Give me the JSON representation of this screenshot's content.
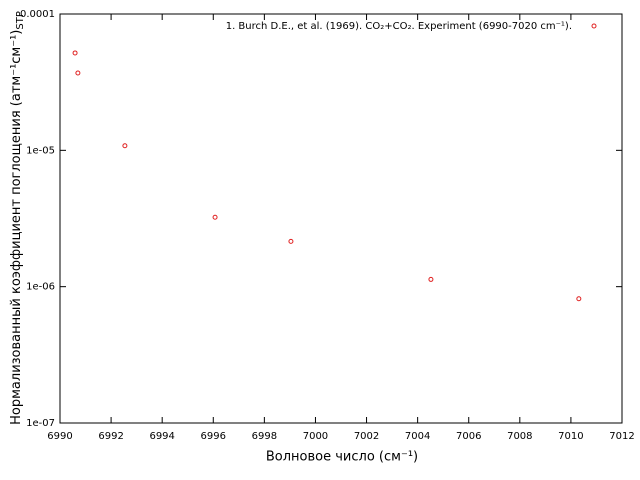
{
  "chart_data": {
    "type": "scatter",
    "xlabel": "Волновое число (см⁻¹)",
    "ylabel": "Нормализованный коэффициент поглощения (атм⁻¹см⁻¹)",
    "ylabel_subscript": "STP",
    "xlim": [
      6990,
      7012
    ],
    "xticks": [
      6990,
      6992,
      6994,
      6996,
      6998,
      7000,
      7002,
      7004,
      7006,
      7008,
      7010,
      7012
    ],
    "ylim": [
      1e-07,
      0.0001
    ],
    "yticks": [
      {
        "value": 1e-07,
        "label": "1e-07"
      },
      {
        "value": 1e-06,
        "label": "1e-06"
      },
      {
        "value": 1e-05,
        "label": "1e-05"
      },
      0.0001
    ],
    "log_y": true,
    "legend": "top-right",
    "series": [
      {
        "name": "1. Burch D.E., et al. (1969). CO₂+CO₂. Experiment  (6990-7020 cm⁻¹).",
        "color": "#e02020",
        "x": [
          6990.59,
          6990.7,
          6992.54,
          6996.07,
          6999.04,
          7004.52,
          7010.31
        ],
        "values": [
          5.18e-05,
          3.69e-05,
          1.08e-05,
          3.23e-06,
          2.15e-06,
          1.13e-06,
          8.16e-07
        ]
      }
    ]
  }
}
